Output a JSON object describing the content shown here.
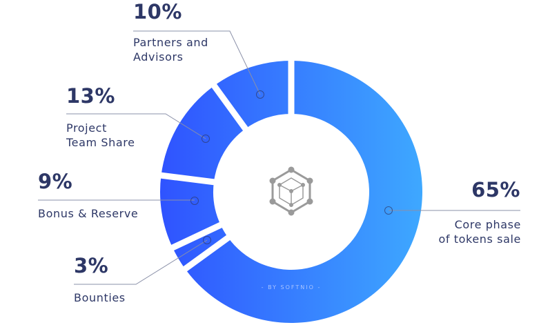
{
  "chart_data": {
    "type": "pie",
    "donut": true,
    "categories": [
      "Core phase of tokens sale",
      "Bounties",
      "Bonus & Reserve",
      "Project Team Share",
      "Partners and Advisors"
    ],
    "values": [
      65,
      3,
      9,
      13,
      10
    ],
    "value_labels": [
      "65%",
      "3%",
      "9%",
      "13%",
      "10%"
    ],
    "label_lines": [
      "Core phase\nof tokens sale",
      "Bounties",
      "Bonus & Reserve",
      "Project\nTeam Share",
      "Partners and\nAdvisors"
    ],
    "gradient": [
      "#2f53ff",
      "#3ea8ff"
    ],
    "legend": "none"
  },
  "center_icon": "hexagon-cube-network-icon",
  "credit": "- BY SOFTNIO -",
  "colors": {
    "text": "#2d3766",
    "leader": "#8a90a8",
    "icon": "#9a9a9a"
  }
}
